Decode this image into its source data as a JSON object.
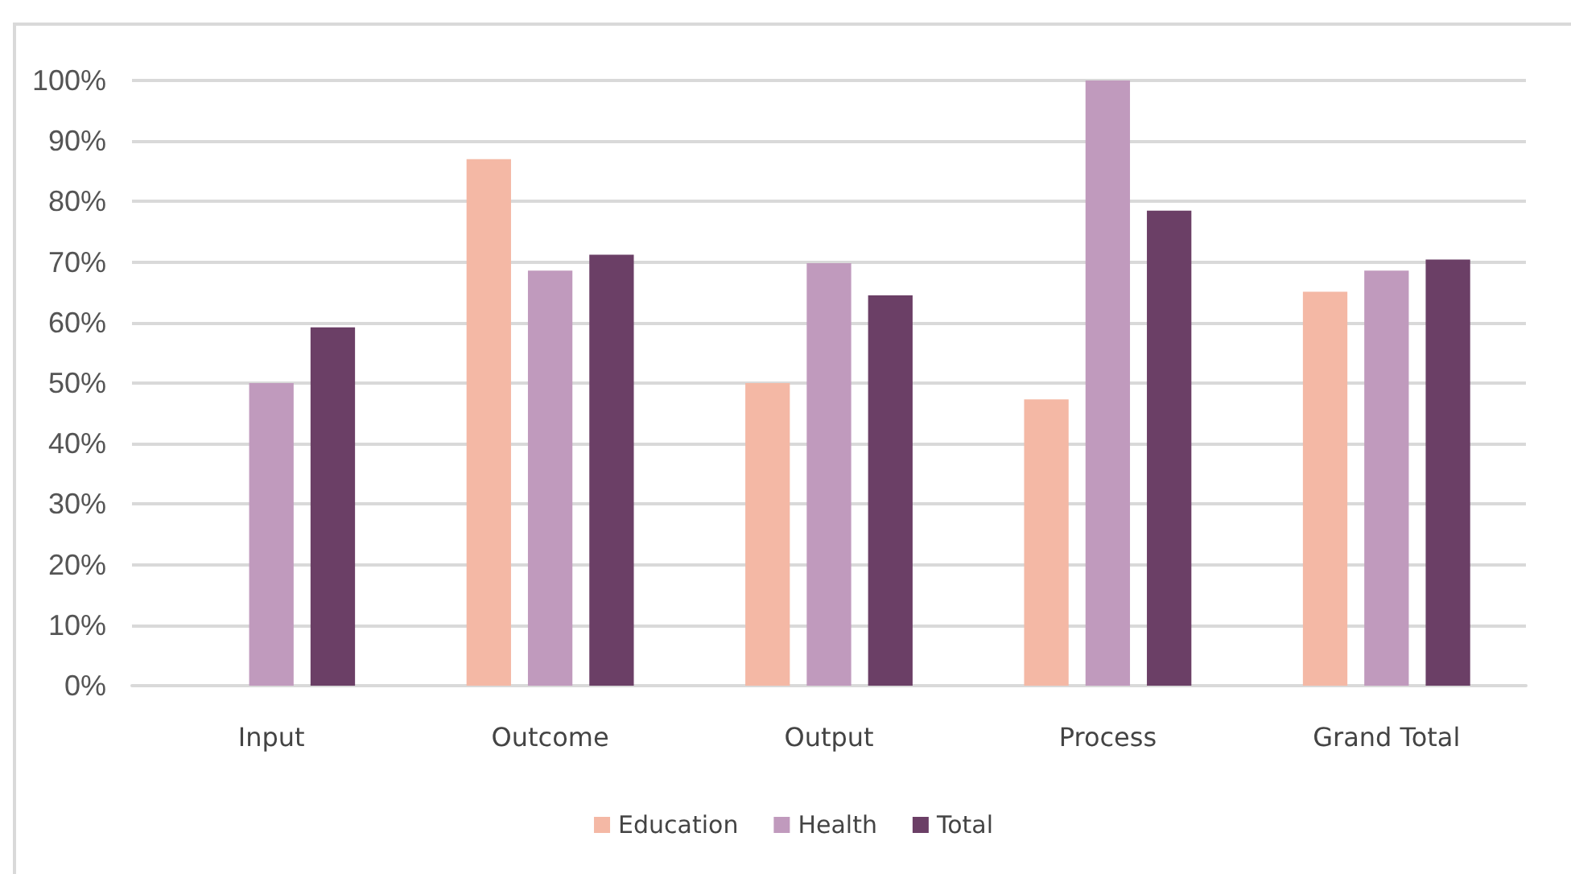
{
  "chart_data": {
    "type": "bar",
    "categories": [
      "Input",
      "Outcome",
      "Output",
      "Process",
      "Grand Total"
    ],
    "series": [
      {
        "name": "Education",
        "color": "#f4b8a5",
        "values": [
          null,
          87,
          50,
          47.3,
          65.1
        ]
      },
      {
        "name": "Health",
        "color": "#c09abd",
        "values": [
          50,
          68.6,
          69.8,
          100,
          68.6
        ]
      },
      {
        "name": "Total",
        "color": "#6b3f66",
        "values": [
          59.2,
          71.2,
          64.5,
          78.5,
          70.4
        ]
      }
    ],
    "ylim": [
      0,
      100
    ],
    "yticks": [
      {
        "value": 0,
        "label": "0%"
      },
      {
        "value": 10,
        "label": "10%"
      },
      {
        "value": 20,
        "label": "20%"
      },
      {
        "value": 30,
        "label": "30%"
      },
      {
        "value": 40,
        "label": "40%"
      },
      {
        "value": 50,
        "label": "50%"
      },
      {
        "value": 60,
        "label": "60%"
      },
      {
        "value": 70,
        "label": "70%"
      },
      {
        "value": 80,
        "label": "80%"
      },
      {
        "value": 90,
        "label": "90%"
      },
      {
        "value": 100,
        "label": "100%"
      }
    ],
    "grid": "y",
    "legend": "bottom"
  }
}
